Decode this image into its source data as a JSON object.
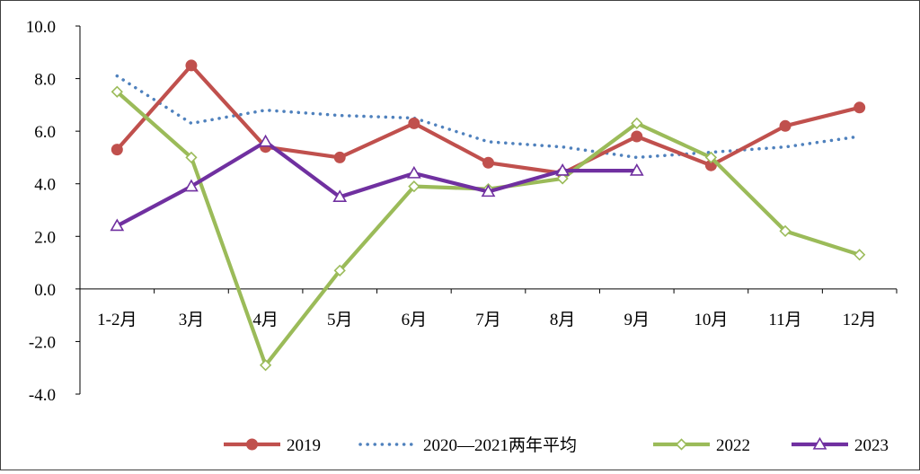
{
  "chart_data": {
    "type": "line",
    "title": "",
    "xlabel": "",
    "ylabel": "",
    "categories": [
      "1-2月",
      "3月",
      "4月",
      "5月",
      "6月",
      "7月",
      "8月",
      "9月",
      "10月",
      "11月",
      "12月"
    ],
    "ylim": [
      -4.0,
      10.0
    ],
    "yticks": [
      "10.0",
      "8.0",
      "6.0",
      "4.0",
      "2.0",
      "0.0",
      "-2.0",
      "-4.0"
    ],
    "ytick_values": [
      10,
      8,
      6,
      4,
      2,
      0,
      -2,
      -4
    ],
    "grid": false,
    "legend_position": "bottom",
    "series": [
      {
        "name": "2019",
        "color": "#C0504D",
        "style": "solid",
        "marker": "circle",
        "values": [
          5.3,
          8.5,
          5.4,
          5.0,
          6.3,
          4.8,
          4.4,
          5.8,
          4.7,
          6.2,
          6.9
        ]
      },
      {
        "name": "2020—2021两年平均",
        "color": "#4F81BD",
        "style": "dotted",
        "marker": "none",
        "values": [
          8.1,
          6.3,
          6.8,
          6.6,
          6.5,
          5.6,
          5.4,
          5.0,
          5.2,
          5.4,
          5.8
        ]
      },
      {
        "name": "2022",
        "color": "#9BBB59",
        "style": "solid",
        "marker": "diamond",
        "values": [
          7.5,
          5.0,
          -2.9,
          0.7,
          3.9,
          3.8,
          4.2,
          6.3,
          5.0,
          2.2,
          1.3
        ]
      },
      {
        "name": "2023",
        "color": "#7030A0",
        "style": "solid",
        "marker": "triangle",
        "values": [
          2.4,
          3.9,
          5.6,
          3.5,
          4.4,
          3.7,
          4.5,
          4.5,
          null,
          null,
          null
        ]
      }
    ]
  }
}
